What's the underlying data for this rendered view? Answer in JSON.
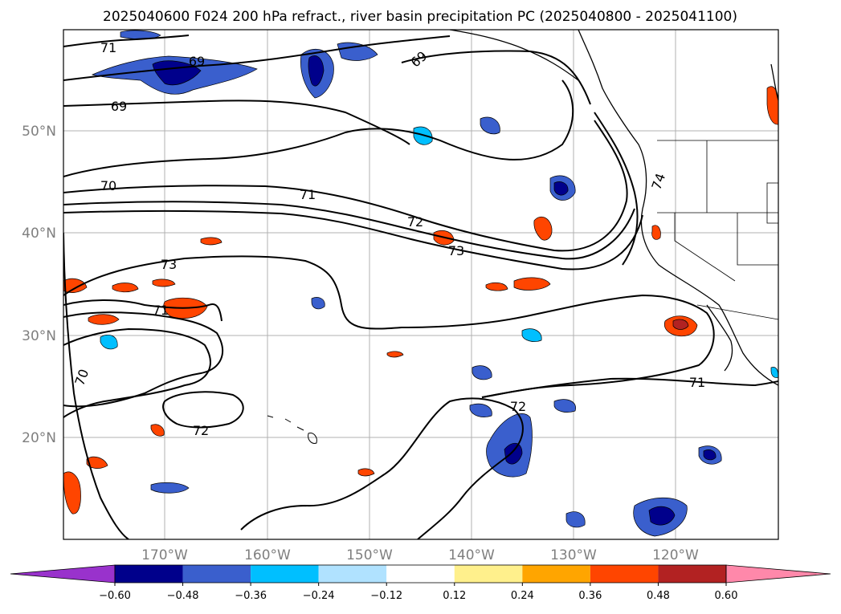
{
  "title": "2025040600 F024 200 hPa refract., river basin precipitation PC (2025040800 - 2025041100)",
  "latitude_labels": [
    "50°N",
    "40°N",
    "30°N",
    "20°N"
  ],
  "longitude_labels": [
    "170°W",
    "160°W",
    "150°W",
    "140°W",
    "130°W",
    "120°W"
  ],
  "contour_labels": [
    {
      "text": "71"
    },
    {
      "text": "69"
    },
    {
      "text": "69"
    },
    {
      "text": "69"
    },
    {
      "text": "70"
    },
    {
      "text": "71"
    },
    {
      "text": "72"
    },
    {
      "text": "73"
    },
    {
      "text": "74"
    },
    {
      "text": "73"
    },
    {
      "text": "71"
    },
    {
      "text": "70"
    },
    {
      "text": "72"
    },
    {
      "text": "72"
    },
    {
      "text": "71"
    }
  ],
  "colorbar": {
    "ticks": [
      "−0.60",
      "−0.48",
      "−0.36",
      "−0.24",
      "−0.12",
      "0.12",
      "0.24",
      "0.36",
      "0.48",
      "0.60"
    ],
    "colors": [
      "#9932cc",
      "#00008b",
      "#3a5fcd",
      "#00bfff",
      "#b0e2ff",
      "#ffffff",
      "#fff08c",
      "#ffa500",
      "#ff4500",
      "#b22222",
      "#ff88aa"
    ]
  },
  "colors": {
    "contour": "#000000",
    "grid": "#b0b0b0",
    "coast": "#000000",
    "neg_dark": "#00008b",
    "neg_mid": "#3a5fcd",
    "neg_light": "#00bfff",
    "pos_light": "#ffa500",
    "pos_mid": "#ff4500",
    "pos_dark": "#b22222"
  }
}
